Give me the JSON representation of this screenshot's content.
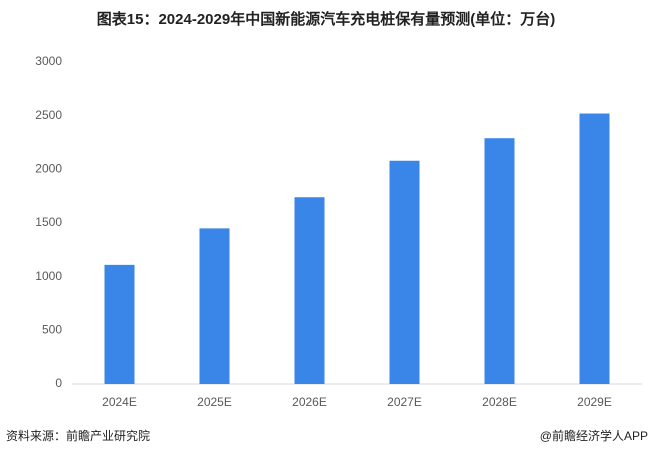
{
  "chart_data": {
    "type": "bar",
    "title": "图表15：2024-2029年中国新能源汽车充电桩保有量预测(单位：万台)",
    "categories": [
      "2024E",
      "2025E",
      "2026E",
      "2027E",
      "2028E",
      "2029E"
    ],
    "values": [
      1110,
      1450,
      1740,
      2080,
      2290,
      2520
    ],
    "color": "#3a86e8",
    "ylim": [
      0,
      3000
    ],
    "yticks": [
      0,
      500,
      1000,
      1500,
      2000,
      2500,
      3000
    ],
    "grid": false
  },
  "footer": {
    "source": "资料来源：前瞻产业研究院",
    "credit": "@前瞻经济学人APP"
  }
}
